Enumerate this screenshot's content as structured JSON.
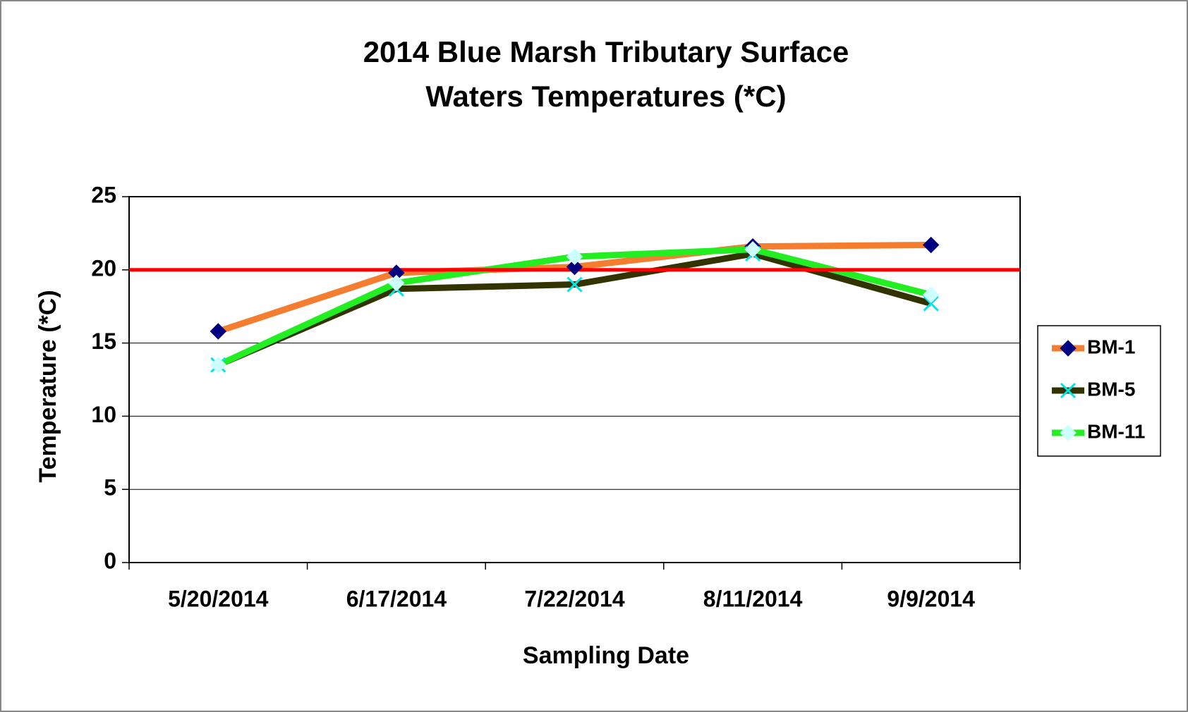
{
  "chart_data": {
    "type": "line",
    "title": [
      "2014 Blue Marsh Tributary Surface",
      "Waters Temperatures (*C)"
    ],
    "x_label": "Sampling Date",
    "y_label": "Temperature (*C)",
    "categories": [
      "5/20/2014",
      "6/17/2014",
      "7/22/2014",
      "8/11/2014",
      "9/9/2014"
    ],
    "series": [
      {
        "name": "BM-1",
        "color": "#f47d30",
        "marker": "diamond",
        "marker_color": "#000080",
        "values": [
          15.8,
          19.8,
          20.2,
          21.6,
          21.7
        ]
      },
      {
        "name": "BM-5",
        "color": "#333300",
        "marker": "x",
        "marker_color": "#00e5e5",
        "values": [
          13.5,
          18.7,
          19.0,
          21.1,
          17.7
        ]
      },
      {
        "name": "BM-11",
        "color": "#22ee22",
        "marker": "diamond",
        "marker_color": "#ccffff",
        "values": [
          13.5,
          19.1,
          20.9,
          21.4,
          18.3
        ]
      }
    ],
    "reference_line": {
      "value": 20,
      "color": "#ff0000"
    },
    "ylim": [
      0,
      25
    ],
    "yticks": [
      0,
      5,
      10,
      15,
      20,
      25
    ],
    "grid": true,
    "legend": "right"
  }
}
